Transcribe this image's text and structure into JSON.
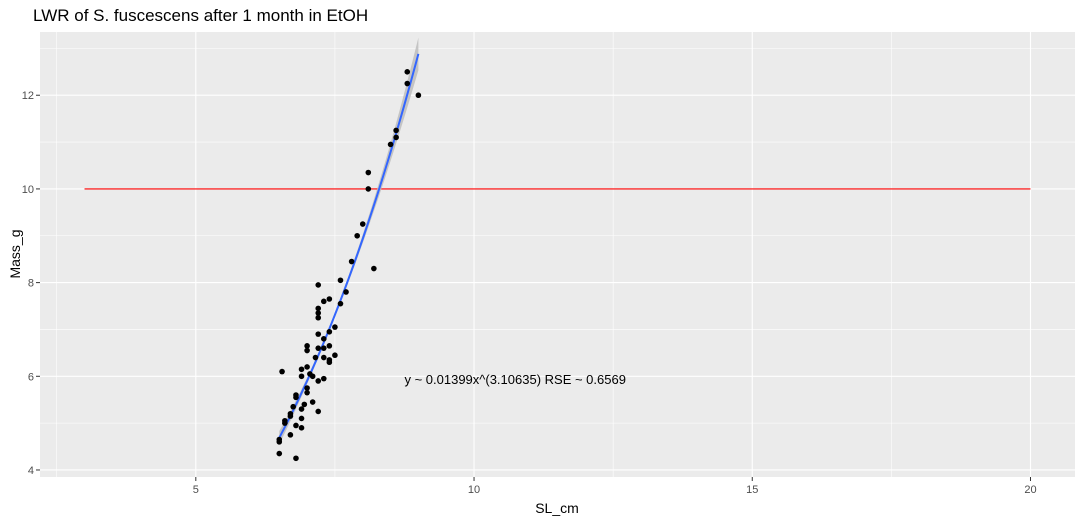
{
  "chart_data": {
    "type": "scatter",
    "title": "LWR of S. fuscescens after 1 month in EtOH",
    "xlabel": "SL_cm",
    "ylabel": "Mass_g",
    "xlim": [
      2.2,
      20.8
    ],
    "ylim": [
      3.85,
      13.35
    ],
    "x_ticks": [
      5,
      10,
      15,
      20
    ],
    "y_ticks": [
      4,
      6,
      8,
      10,
      12
    ],
    "grid": true,
    "background": "#ebebeb",
    "points": [
      {
        "x": 6.5,
        "y": 4.35
      },
      {
        "x": 6.5,
        "y": 4.6
      },
      {
        "x": 6.5,
        "y": 4.65
      },
      {
        "x": 6.55,
        "y": 6.1
      },
      {
        "x": 6.6,
        "y": 5.0
      },
      {
        "x": 6.6,
        "y": 5.05
      },
      {
        "x": 6.7,
        "y": 4.75
      },
      {
        "x": 6.7,
        "y": 5.15
      },
      {
        "x": 6.7,
        "y": 5.2
      },
      {
        "x": 6.75,
        "y": 5.35
      },
      {
        "x": 6.8,
        "y": 4.25
      },
      {
        "x": 6.8,
        "y": 4.95
      },
      {
        "x": 6.8,
        "y": 5.55
      },
      {
        "x": 6.8,
        "y": 5.6
      },
      {
        "x": 6.9,
        "y": 4.9
      },
      {
        "x": 6.9,
        "y": 5.1
      },
      {
        "x": 6.9,
        "y": 5.3
      },
      {
        "x": 6.9,
        "y": 6.0
      },
      {
        "x": 6.9,
        "y": 6.15
      },
      {
        "x": 6.95,
        "y": 5.4
      },
      {
        "x": 7.0,
        "y": 5.65
      },
      {
        "x": 7.0,
        "y": 5.75
      },
      {
        "x": 7.0,
        "y": 6.2
      },
      {
        "x": 7.0,
        "y": 6.55
      },
      {
        "x": 7.0,
        "y": 6.65
      },
      {
        "x": 7.05,
        "y": 6.05
      },
      {
        "x": 7.1,
        "y": 5.45
      },
      {
        "x": 7.1,
        "y": 6.0
      },
      {
        "x": 7.15,
        "y": 6.4
      },
      {
        "x": 7.2,
        "y": 5.25
      },
      {
        "x": 7.2,
        "y": 5.9
      },
      {
        "x": 7.2,
        "y": 6.6
      },
      {
        "x": 7.2,
        "y": 6.9
      },
      {
        "x": 7.2,
        "y": 7.25
      },
      {
        "x": 7.2,
        "y": 7.35
      },
      {
        "x": 7.2,
        "y": 7.45
      },
      {
        "x": 7.2,
        "y": 7.95
      },
      {
        "x": 7.3,
        "y": 5.95
      },
      {
        "x": 7.3,
        "y": 6.4
      },
      {
        "x": 7.3,
        "y": 6.6
      },
      {
        "x": 7.3,
        "y": 6.8
      },
      {
        "x": 7.3,
        "y": 7.6
      },
      {
        "x": 7.4,
        "y": 6.3
      },
      {
        "x": 7.4,
        "y": 6.35
      },
      {
        "x": 7.4,
        "y": 6.65
      },
      {
        "x": 7.4,
        "y": 6.95
      },
      {
        "x": 7.4,
        "y": 7.65
      },
      {
        "x": 7.5,
        "y": 6.45
      },
      {
        "x": 7.5,
        "y": 7.05
      },
      {
        "x": 7.6,
        "y": 7.55
      },
      {
        "x": 7.6,
        "y": 8.05
      },
      {
        "x": 7.7,
        "y": 7.8
      },
      {
        "x": 7.8,
        "y": 8.45
      },
      {
        "x": 7.9,
        "y": 9.0
      },
      {
        "x": 8.0,
        "y": 9.25
      },
      {
        "x": 8.1,
        "y": 10.35
      },
      {
        "x": 8.1,
        "y": 10.0
      },
      {
        "x": 8.2,
        "y": 8.3
      },
      {
        "x": 8.5,
        "y": 10.95
      },
      {
        "x": 8.6,
        "y": 11.1
      },
      {
        "x": 8.6,
        "y": 11.25
      },
      {
        "x": 8.8,
        "y": 12.25
      },
      {
        "x": 8.8,
        "y": 12.5
      },
      {
        "x": 9.0,
        "y": 12.0
      }
    ],
    "fit": {
      "model": "power",
      "a": 0.01399,
      "b": 3.10635,
      "x_range": [
        6.5,
        9.0
      ],
      "color": "#3366ff",
      "ci_color": "#bdbdbd"
    },
    "hline": {
      "y": 10,
      "x_range": [
        3,
        20
      ],
      "color": "#ff0000"
    },
    "annotation": {
      "text": "y ~ 0.01399x^(3.10635)  RSE ~ 0.6569",
      "x": 8.75,
      "y": 5.92
    }
  }
}
